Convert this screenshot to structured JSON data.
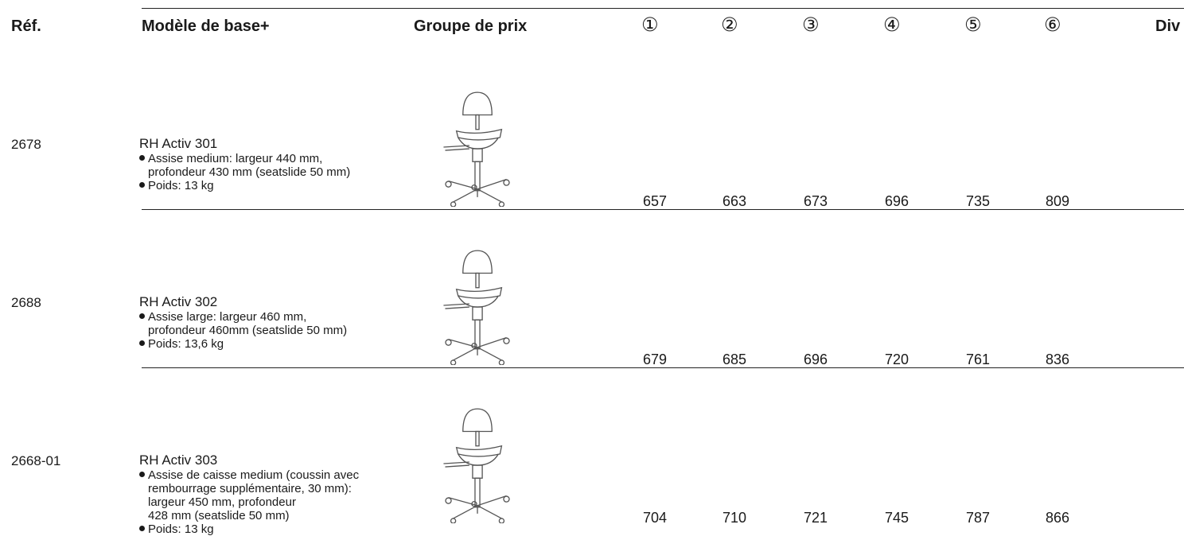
{
  "header": {
    "columns": [
      "Réf.",
      "Modèle de base+",
      "Groupe de prix",
      "①",
      "②",
      "③",
      "④",
      "⑤",
      "⑥",
      "Div"
    ]
  },
  "rows": [
    {
      "ref": "2678",
      "model": "RH Activ 301",
      "bullets": [
        [
          "Assise medium: largeur 440 mm,",
          "profondeur 430 mm (seatslide 50 mm)"
        ],
        [
          "Poids: 13 kg"
        ]
      ],
      "prices": [
        657,
        663,
        673,
        696,
        735,
        809
      ]
    },
    {
      "ref": "2688",
      "model": "RH Activ 302",
      "bullets": [
        [
          "Assise large: largeur 460 mm,",
          "profondeur 460mm (seatslide 50 mm)"
        ],
        [
          "Poids: 13,6 kg"
        ]
      ],
      "prices": [
        679,
        685,
        696,
        720,
        761,
        836
      ]
    },
    {
      "ref": "2668-01",
      "model": "RH Activ 303",
      "bullets": [
        [
          "Assise de caisse medium (coussin avec",
          "rembourrage supplémentaire, 30 mm):",
          "largeur 450 mm, profondeur",
          "428 mm (seatslide 50 mm)"
        ],
        [
          "Poids: 13 kg"
        ]
      ],
      "prices": [
        704,
        710,
        721,
        745,
        787,
        866
      ]
    }
  ]
}
